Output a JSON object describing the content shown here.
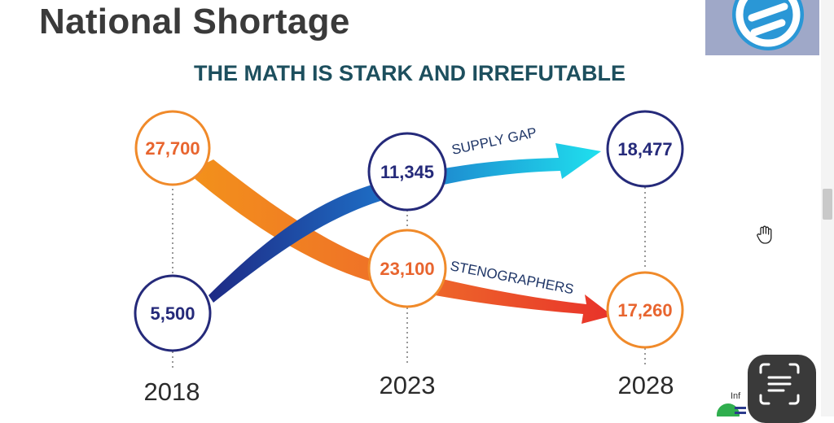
{
  "header": {
    "title": "National Shortage"
  },
  "diagram": {
    "subtitle": "THE MATH IS STARK AND IRREFUTABLE",
    "years": [
      "2018",
      "2023",
      "2028"
    ],
    "supply_gap": {
      "label": "SUPPLY GAP",
      "values": [
        "5,500",
        "11,345",
        "18,477"
      ]
    },
    "stenographers": {
      "label": "STENOGRAPHERS",
      "values": [
        "27,700",
        "23,100",
        "17,260"
      ]
    }
  },
  "corner": {
    "partial_text": "Inf"
  },
  "colors": {
    "navy": "#252a7a",
    "orange": "#f08a2a",
    "orange_text": "#e8652f",
    "teal_title": "#1d4f5e",
    "cyan": "#1fd8ec",
    "red": "#e8322a"
  },
  "icons": {
    "logo": "brand-logo-icon",
    "cursor": "hand-cursor-icon",
    "scan": "text-scan-icon"
  }
}
